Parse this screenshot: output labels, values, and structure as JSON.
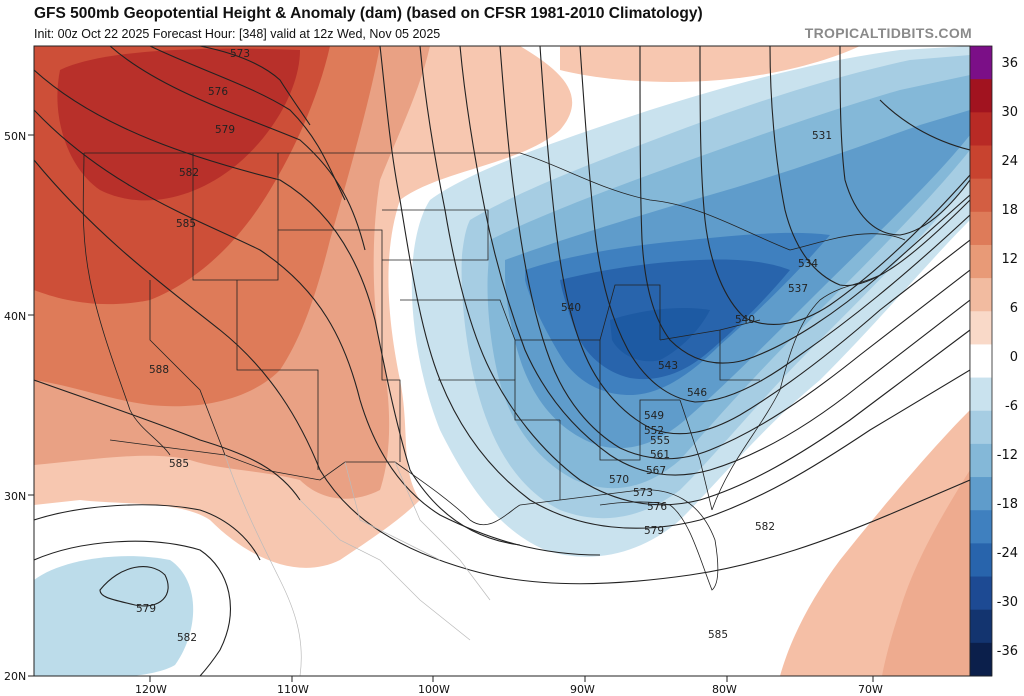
{
  "header": {
    "title": "GFS 500mb Geopotential Height & Anomaly (dam) (based on CFSR 1981-2010 Climatology)",
    "subtitle": "Init: 00z Oct 22 2025   Forecast Hour: [348]   valid at 12z Wed, Nov 05 2025",
    "credit": "TROPICALTIDBITS.COM"
  },
  "axes": {
    "lat_labels": [
      "50N",
      "40N",
      "30N",
      "20N"
    ],
    "lon_labels": [
      "120W",
      "110W",
      "100W",
      "90W",
      "80W",
      "70W"
    ]
  },
  "contour_labels": [
    {
      "text": "573",
      "key": "c573w"
    },
    {
      "text": "576",
      "key": "c576w"
    },
    {
      "text": "579",
      "key": "c579w"
    },
    {
      "text": "582",
      "key": "c582w"
    },
    {
      "text": "585",
      "key": "c585w"
    },
    {
      "text": "588",
      "key": "c588"
    },
    {
      "text": "585",
      "key": "c585s"
    },
    {
      "text": "579",
      "key": "c579p"
    },
    {
      "text": "582",
      "key": "c582p"
    },
    {
      "text": "540",
      "key": "c540a"
    },
    {
      "text": "543",
      "key": "c543"
    },
    {
      "text": "546",
      "key": "c546"
    },
    {
      "text": "549",
      "key": "c549"
    },
    {
      "text": "552",
      "key": "c552"
    },
    {
      "text": "555",
      "key": "c555"
    },
    {
      "text": "561",
      "key": "c561"
    },
    {
      "text": "567",
      "key": "c567"
    },
    {
      "text": "570",
      "key": "c570"
    },
    {
      "text": "573",
      "key": "c573e"
    },
    {
      "text": "576",
      "key": "c576e"
    },
    {
      "text": "579",
      "key": "c579e"
    },
    {
      "text": "582",
      "key": "c582e"
    },
    {
      "text": "585",
      "key": "c585e"
    },
    {
      "text": "531",
      "key": "c531"
    },
    {
      "text": "534",
      "key": "c534"
    },
    {
      "text": "537",
      "key": "c537"
    },
    {
      "text": "540",
      "key": "c540b"
    }
  ],
  "colorbar": {
    "labels": [
      "36",
      "30",
      "24",
      "18",
      "12",
      "6",
      "0",
      "-6",
      "-12",
      "-18",
      "-24",
      "-30",
      "-36"
    ],
    "colors": [
      "#7b0f87",
      "#a1131f",
      "#b82a25",
      "#c8432f",
      "#d35e42",
      "#de7b59",
      "#e89a77",
      "#f2bba0",
      "#f9d9c8",
      "#ffffff",
      "#c9e2ee",
      "#a6cde3",
      "#84b8d8",
      "#5f9ccb",
      "#3f80bf",
      "#2864ac",
      "#1d4a93",
      "#13346f",
      "#0b1f4b"
    ]
  },
  "colors": {
    "positive_anomaly": "#e07a57",
    "negative_anomaly": "#3f80bf",
    "contour": "#222222"
  }
}
